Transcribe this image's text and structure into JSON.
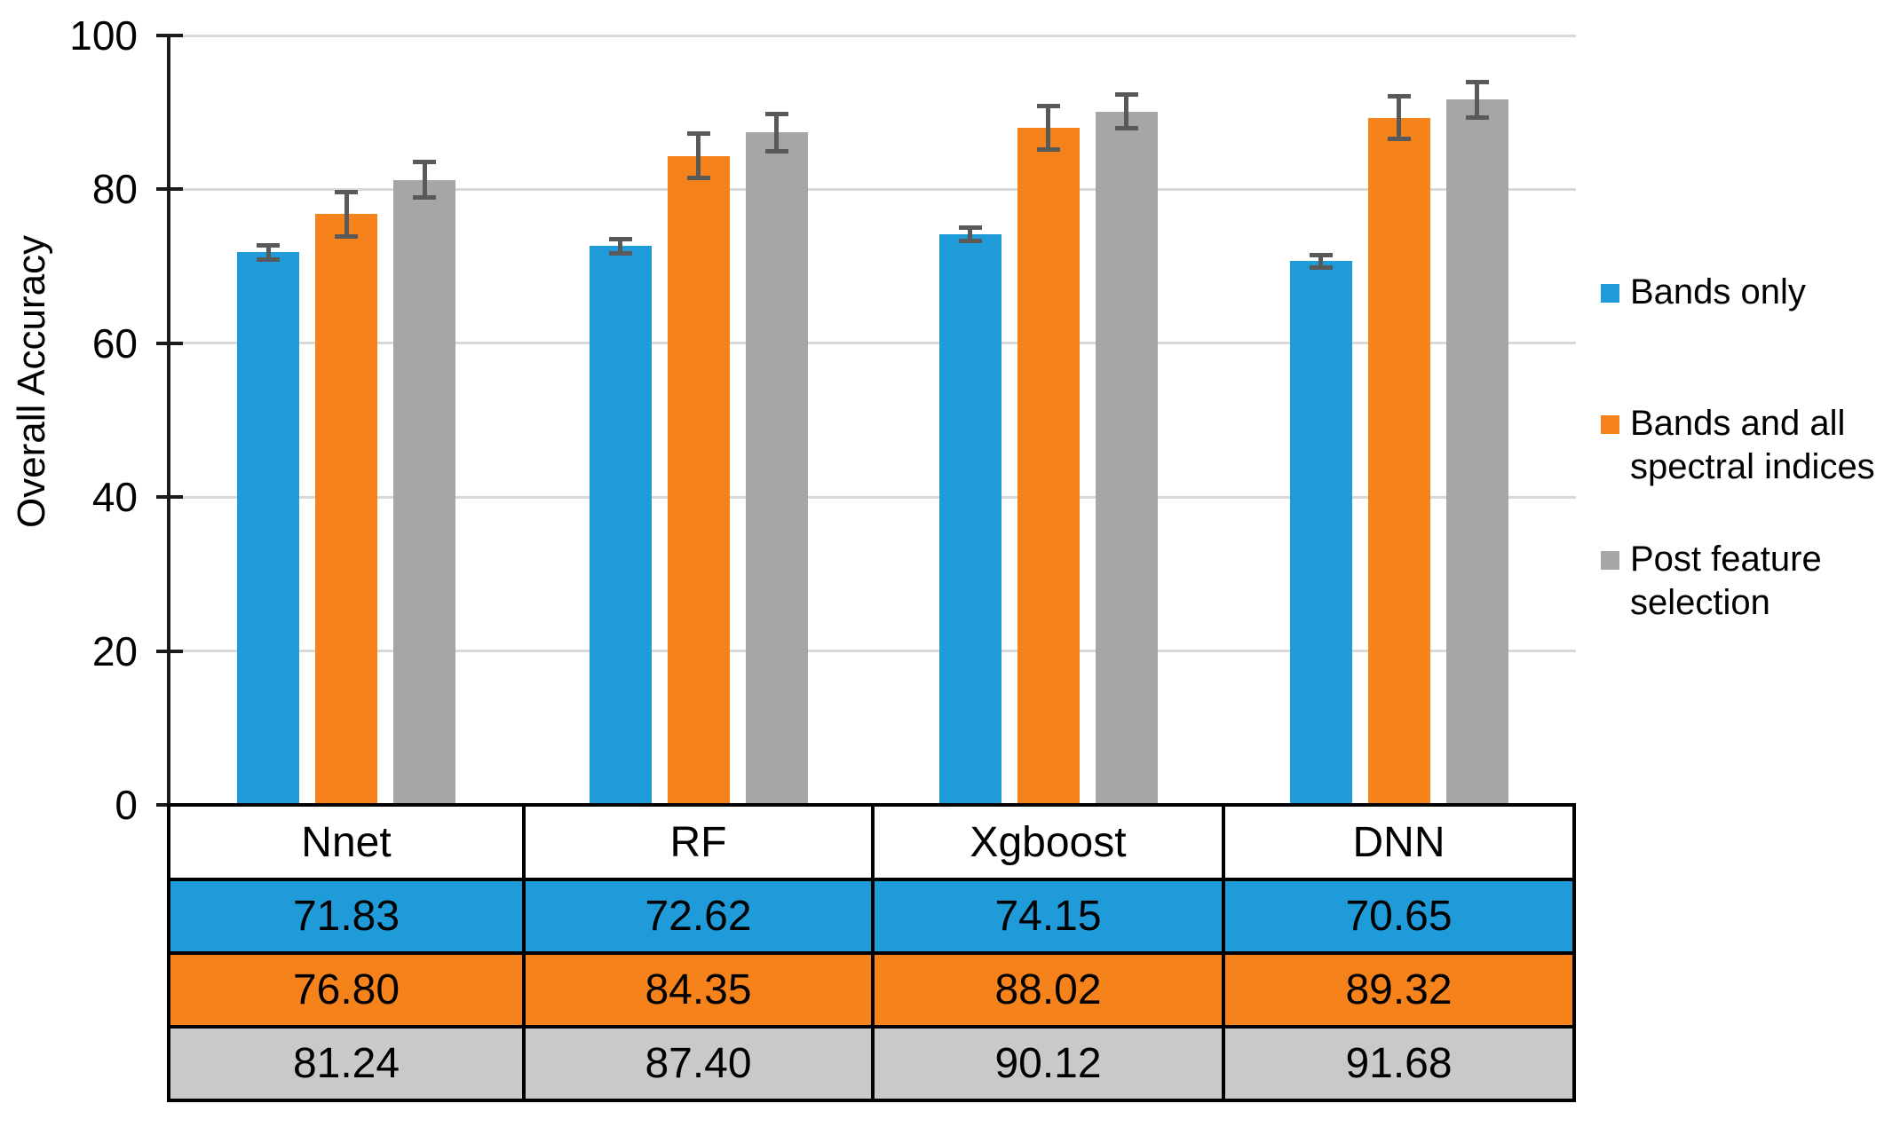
{
  "chart_data": {
    "type": "bar",
    "title": "",
    "ylabel": "Overall Accuracy",
    "xlabel": "",
    "y_axis": {
      "min": 0,
      "max": 100,
      "ticks": [
        0,
        20,
        40,
        60,
        80,
        100
      ]
    },
    "grid": "horizontal",
    "categories": [
      "Nnet",
      "RF",
      "Xgboost",
      "DNN"
    ],
    "series": [
      {
        "name": "Bands only",
        "color": "#1E9BD8",
        "table_color": "#1E9BD8",
        "values": [
          "71.83",
          "72.62",
          "74.15",
          "70.65"
        ],
        "errors": [
          0.9,
          0.9,
          0.9,
          0.8
        ]
      },
      {
        "name": "Bands and all spectral indices",
        "color": "#F6821C",
        "table_color": "#F6821C",
        "values": [
          "76.80",
          "84.35",
          "88.02",
          "89.32"
        ],
        "errors": [
          2.9,
          2.9,
          2.8,
          2.8
        ]
      },
      {
        "name": "Post feature selection",
        "color": "#A6A6A6",
        "table_color": "#C9C9C9",
        "values": [
          "81.24",
          "87.40",
          "90.12",
          "91.68"
        ],
        "errors": [
          2.3,
          2.4,
          2.2,
          2.3
        ]
      }
    ],
    "legend": {
      "position": "right",
      "items": [
        {
          "label": "Bands only"
        },
        {
          "label": "Bands and all\nspectral indices"
        },
        {
          "label": "Post feature\nselection"
        }
      ]
    },
    "colors": {
      "error_bar": "#595959",
      "gridline": "#D9D9D9",
      "axis": "#1A1A1A",
      "table_border": "#000000",
      "background": "#FFFFFF"
    },
    "data_table": {
      "shown": true,
      "value_align": [
        "center",
        "center",
        "center",
        "left"
      ]
    }
  }
}
